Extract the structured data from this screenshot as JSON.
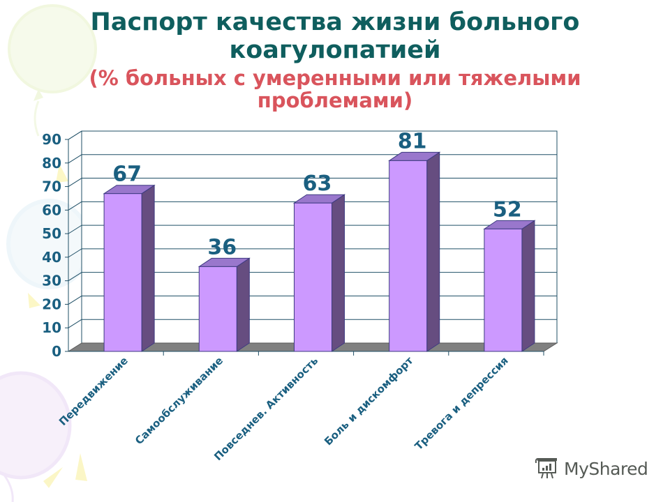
{
  "title": {
    "line1": "Паспорт качества жизни больного",
    "line2": "коагулопатией",
    "subtitle1": "(% больных с умеренными или тяжелыми",
    "subtitle2": "проблемами)"
  },
  "colors": {
    "title": "#0f5e5e",
    "subtitle": "#d9545c",
    "bar_front": "#cc99ff",
    "bar_side": "#664d80",
    "bar_top": "#9977cc",
    "axis_text": "#1a5f80",
    "floor": "#808080"
  },
  "watermark": {
    "label": "MyShared",
    "icon": "presentation-board-icon"
  },
  "chart_data": {
    "type": "bar",
    "title": "Паспорт качества жизни больного коагулопатией (% больных с умеренными или тяжелыми проблемами)",
    "categories": [
      "Передвижение",
      "Самообслуживание",
      "Повседнев. Активность",
      "Боль и дискомфорт",
      "Тревога и депрессия"
    ],
    "values": [
      67,
      36,
      63,
      81,
      52
    ],
    "value_labels": [
      "67",
      "36",
      "63",
      "81",
      "52"
    ],
    "yticks": [
      "0",
      "10",
      "20",
      "30",
      "40",
      "50",
      "60",
      "70",
      "80",
      "90"
    ],
    "ylim": [
      0,
      90
    ],
    "xlabel": "",
    "ylabel": "",
    "grid": true,
    "legend": null,
    "style": "3d-column"
  }
}
